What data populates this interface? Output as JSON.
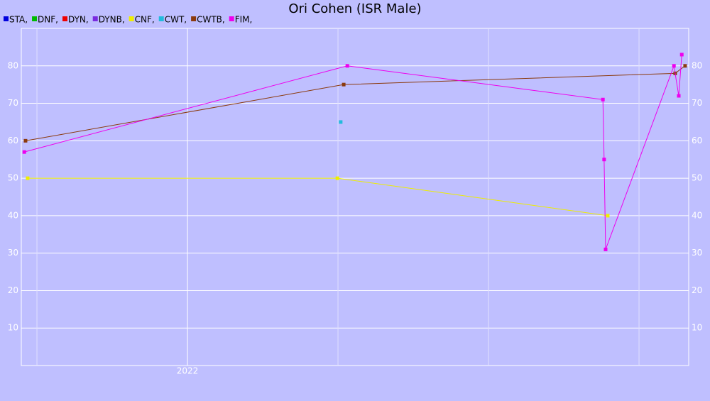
{
  "chart_data": {
    "type": "line",
    "title": "Ori Cohen (ISR Male)",
    "xlim": [
      2021.448,
      2023.665
    ],
    "xticks": [
      2022
    ],
    "xgrid": [
      2021.5,
      2022.5,
      2023,
      2023.5
    ],
    "ylim": [
      0,
      90
    ],
    "yticks": [
      10,
      20,
      30,
      40,
      50,
      60,
      70,
      80
    ],
    "grid": true,
    "series": [
      {
        "name": "STA,",
        "color": "#0000dd",
        "x": [],
        "values": []
      },
      {
        "name": "DNF,",
        "color": "#00bb00",
        "x": [],
        "values": []
      },
      {
        "name": "DYN,",
        "color": "#ee0000",
        "x": [],
        "values": []
      },
      {
        "name": "DYNB,",
        "color": "#7a2be0",
        "x": [],
        "values": []
      },
      {
        "name": "CNF,",
        "color": "#eeee00",
        "x": [
          2021.469,
          2022.498,
          2023.396
        ],
        "values": [
          50,
          50,
          40
        ]
      },
      {
        "name": "CWT,",
        "color": "#22bbdd",
        "x": [
          2022.509
        ],
        "values": [
          65
        ]
      },
      {
        "name": "CWTB,",
        "color": "#8b3a0e",
        "x": [
          2021.462,
          2022.519,
          2023.62,
          2023.653
        ],
        "values": [
          60,
          75,
          78,
          80
        ]
      },
      {
        "name": "FIM,",
        "color": "#ee00ee",
        "x": [
          2021.458,
          2022.531,
          2023.38,
          2023.384,
          2023.389,
          2023.616,
          2023.632,
          2023.642
        ],
        "values": [
          57,
          80,
          71,
          55,
          31,
          80,
          72,
          83
        ]
      }
    ]
  }
}
